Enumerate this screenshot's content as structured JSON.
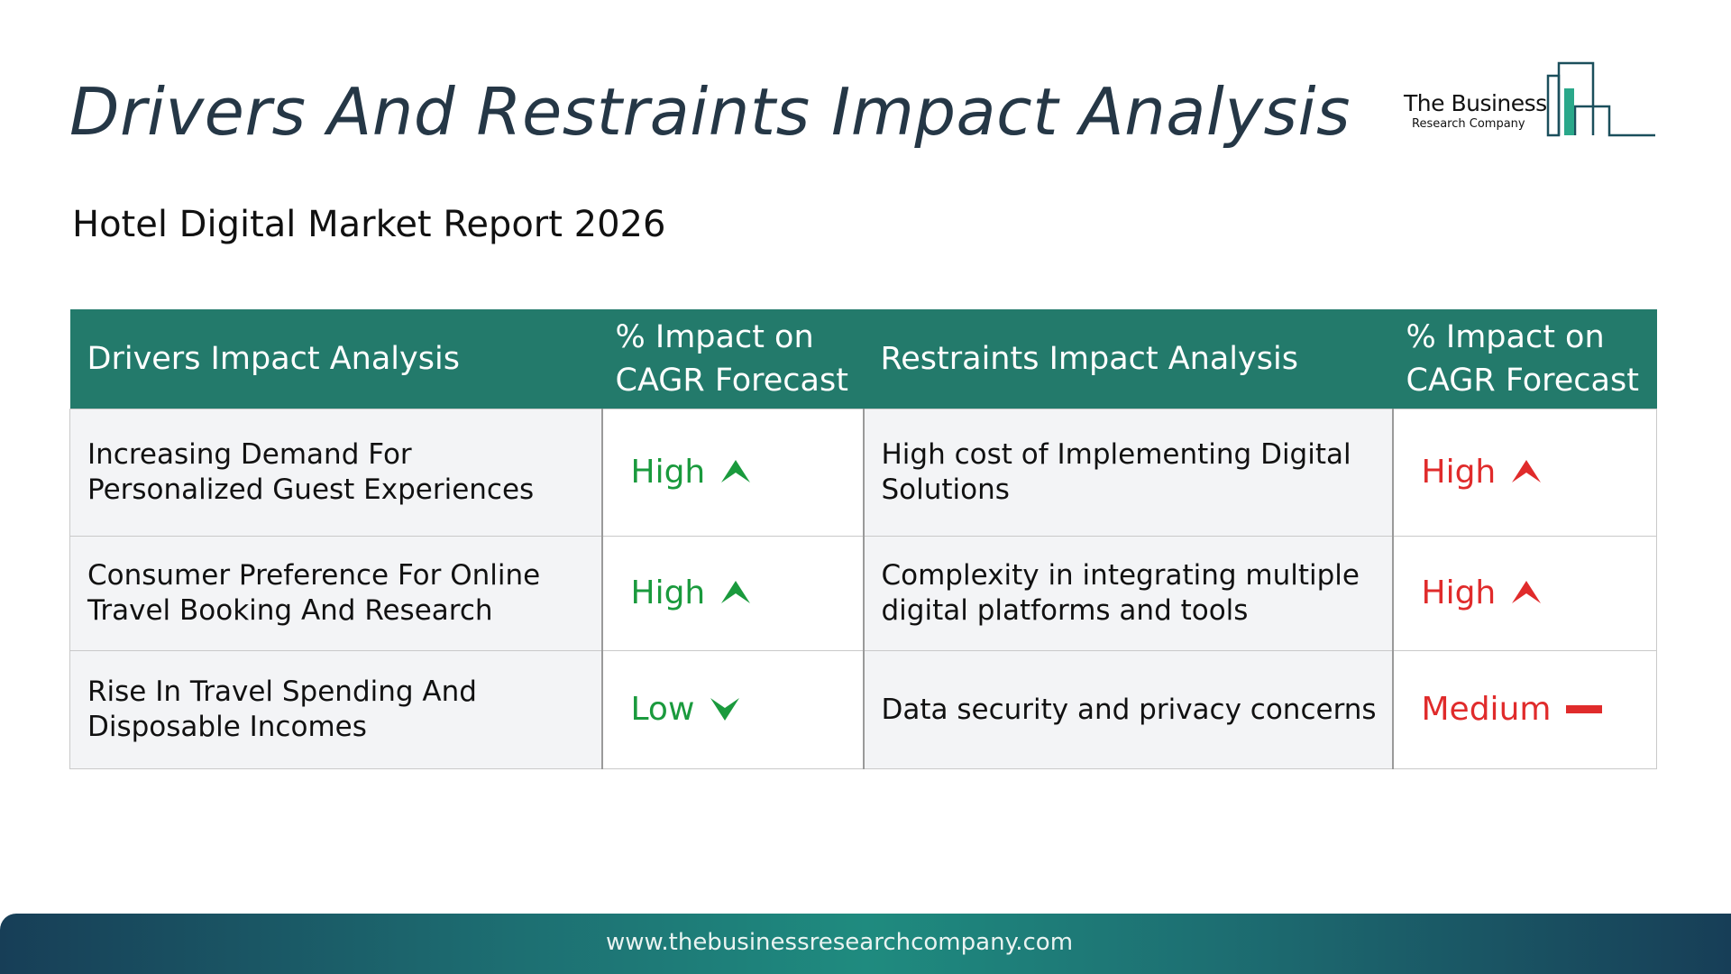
{
  "page": {
    "title": "Drivers And Restraints Impact Analysis",
    "subtitle": "Hotel Digital Market Report 2026"
  },
  "logo": {
    "line1": "The Business",
    "line2": "Research Company",
    "icon": "city-skyline-bars-logo"
  },
  "table": {
    "headers": {
      "drivers": "Drivers Impact Analysis",
      "drivers_impact": "% Impact on CAGR Forecast",
      "restraints": "Restraints Impact Analysis",
      "restraints_impact": "% Impact on CAGR Forecast"
    },
    "rows": [
      {
        "driver": "Increasing Demand For Personalized Guest Experiences",
        "driver_impact": "High",
        "driver_icon": "arrow-up-icon",
        "restraint": "High cost of Implementing Digital Solutions",
        "restraint_impact": "High",
        "restraint_icon": "arrow-up-icon"
      },
      {
        "driver": "Consumer Preference For Online Travel Booking And Research",
        "driver_impact": "High",
        "driver_icon": "arrow-up-icon",
        "restraint": "Complexity in integrating multiple digital platforms and tools",
        "restraint_impact": "High",
        "restraint_icon": "arrow-up-icon"
      },
      {
        "driver": "Rise In Travel Spending And Disposable Incomes",
        "driver_impact": "Low",
        "driver_icon": "arrow-down-icon",
        "restraint": "Data security and privacy concerns",
        "restraint_impact": "Medium",
        "restraint_icon": "dash-icon"
      }
    ]
  },
  "colors": {
    "header_bg": "#237a6b",
    "driver_rating": "#1a9a3d",
    "restraint_rating": "#e02b2b",
    "title_text": "#253746"
  },
  "footer": {
    "url": "www.thebusinessresearchcompany.com"
  }
}
